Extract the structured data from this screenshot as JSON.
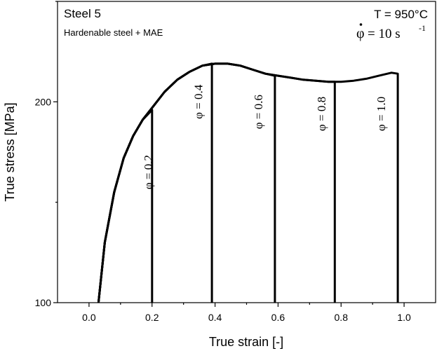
{
  "chart_data": {
    "type": "line",
    "title": "Steel 5",
    "subtitle": "Hardenable steel + MAE",
    "condition_temperature": "T = 950°C",
    "condition_strain_rate_symbol": "φ",
    "condition_strain_rate_value": "= 10 s",
    "condition_strain_rate_exponent": "-1",
    "xlabel": "True strain [-]",
    "ylabel": "True stress [MPa]",
    "xlim": [
      -0.1,
      1.1
    ],
    "ylim": [
      100,
      250
    ],
    "x_ticks": [
      "0.0",
      "0.2",
      "0.4",
      "0.6",
      "0.8",
      "1.0"
    ],
    "y_ticks": [
      "100",
      "200"
    ],
    "grid": false,
    "series": [
      {
        "name": "φ = 0.2",
        "x": [
          0.03,
          0.05,
          0.08,
          0.11,
          0.14,
          0.17,
          0.2,
          0.2,
          0.2
        ],
        "y": [
          100,
          130,
          155,
          172,
          183,
          191,
          196,
          150,
          100
        ]
      },
      {
        "name": "φ = 0.4",
        "x": [
          0.03,
          0.05,
          0.08,
          0.11,
          0.14,
          0.17,
          0.2,
          0.24,
          0.28,
          0.32,
          0.36,
          0.39,
          0.39,
          0.39
        ],
        "y": [
          100,
          130,
          155,
          172,
          183,
          191,
          197,
          205,
          211,
          215,
          218,
          219,
          160,
          100
        ]
      },
      {
        "name": "φ = 0.6",
        "x": [
          0.03,
          0.05,
          0.08,
          0.11,
          0.14,
          0.17,
          0.2,
          0.24,
          0.28,
          0.32,
          0.36,
          0.4,
          0.44,
          0.48,
          0.52,
          0.56,
          0.59,
          0.59,
          0.59
        ],
        "y": [
          100,
          130,
          155,
          172,
          183,
          191,
          197,
          205,
          211,
          215,
          218,
          219,
          219,
          218,
          216,
          214,
          213,
          160,
          100
        ]
      },
      {
        "name": "φ = 0.8",
        "x": [
          0.03,
          0.05,
          0.08,
          0.11,
          0.14,
          0.17,
          0.2,
          0.24,
          0.28,
          0.32,
          0.36,
          0.4,
          0.44,
          0.48,
          0.52,
          0.56,
          0.6,
          0.64,
          0.68,
          0.72,
          0.76,
          0.78,
          0.78,
          0.78
        ],
        "y": [
          100,
          130,
          155,
          172,
          183,
          191,
          197,
          205,
          211,
          215,
          218,
          219,
          219,
          218,
          216,
          214,
          213,
          212,
          211,
          210.5,
          210,
          210,
          160,
          100
        ]
      },
      {
        "name": "φ = 1.0",
        "x": [
          0.03,
          0.05,
          0.08,
          0.11,
          0.14,
          0.17,
          0.2,
          0.24,
          0.28,
          0.32,
          0.36,
          0.4,
          0.44,
          0.48,
          0.52,
          0.56,
          0.6,
          0.64,
          0.68,
          0.72,
          0.76,
          0.8,
          0.84,
          0.88,
          0.92,
          0.96,
          0.98,
          0.98,
          0.98
        ],
        "y": [
          100,
          130,
          155,
          172,
          183,
          191,
          197,
          205,
          211,
          215,
          218,
          219,
          219,
          218,
          216,
          214,
          213,
          212,
          211,
          210.5,
          210,
          210,
          210.5,
          211.5,
          213,
          214.5,
          214,
          160,
          100
        ]
      }
    ],
    "annotations": [
      {
        "text": "φ = 0.2",
        "x": 0.2,
        "y": 165
      },
      {
        "text": "φ = 0.4",
        "x": 0.36,
        "y": 200
      },
      {
        "text": "φ = 0.6",
        "x": 0.55,
        "y": 195
      },
      {
        "text": "φ = 0.8",
        "x": 0.75,
        "y": 194
      },
      {
        "text": "φ = 1.0",
        "x": 0.94,
        "y": 194
      }
    ]
  }
}
